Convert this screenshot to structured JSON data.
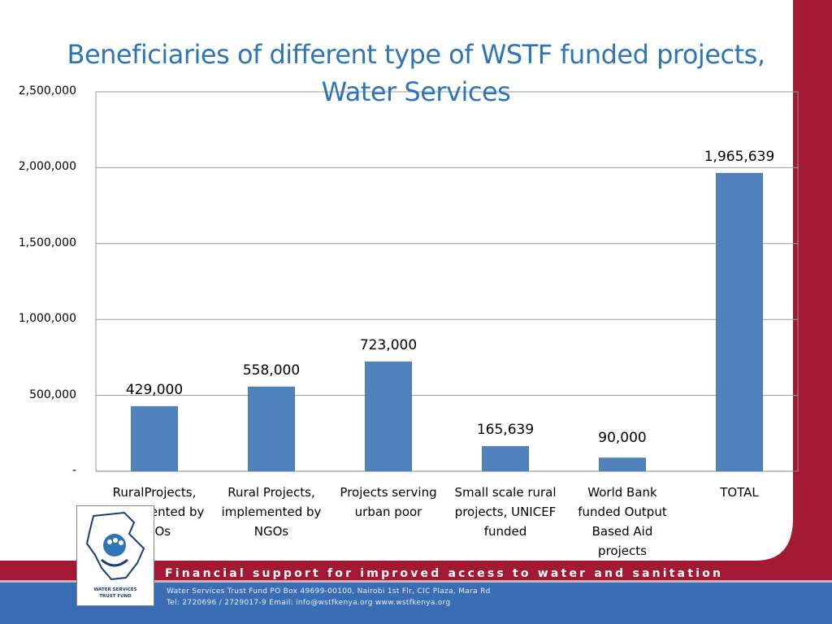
{
  "slide": {
    "title_line1": "Beneficiaries of different type of WSTF funded projects,",
    "title_line2": "Water Services",
    "footer": {
      "tagline": "Financial support for improved access to water and sanitation",
      "address_line": "Water Services Trust Fund     PO Box 49699-00100, Nairobi     1st Flr, CIC Plaza, Mara Rd",
      "contact_line": "Tel: 2720696 / 2729017-9     Email: info@wstfkenya.org     www.wstfkenya.org"
    },
    "logo": {
      "text_line1": "WATER SERVICES",
      "text_line2": "TRUST FUND"
    },
    "colors": {
      "title": "#2e75b6",
      "bar": "#4f81bd",
      "accent_red": "#a31833",
      "footer_blue": "#3a6db3"
    }
  },
  "chart_data": {
    "type": "bar",
    "title": "Beneficiaries of different type of WSTF funded projects, Water Services",
    "categories": [
      [
        "RuralProjects,",
        "implemented by",
        "CBOs"
      ],
      [
        "Rural Projects,",
        "implemented by",
        "NGOs"
      ],
      [
        "Projects serving",
        "urban poor"
      ],
      [
        "Small scale rural",
        "projects, UNICEF",
        "funded"
      ],
      [
        "World Bank",
        "funded Output",
        "Based Aid",
        "projects"
      ],
      [
        "TOTAL"
      ]
    ],
    "values": [
      429000,
      558000,
      723000,
      165639,
      90000,
      1965639
    ],
    "data_labels": [
      "429,000",
      "558,000",
      "723,000",
      "165,639",
      "90,000",
      "1,965,639"
    ],
    "y_ticks": [
      0,
      500000,
      1000000,
      1500000,
      2000000,
      2500000
    ],
    "y_tick_labels": [
      "-",
      "500,000",
      "1,000,000",
      "1,500,000",
      "2,000,000",
      "2,500,000"
    ],
    "ylim": [
      0,
      2500000
    ],
    "grid": true,
    "legend": "none"
  }
}
